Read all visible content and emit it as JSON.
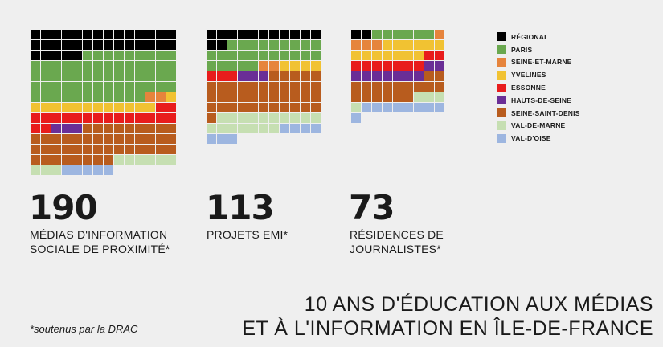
{
  "chart_data": {
    "type": "waffle",
    "regions": [
      {
        "key": "regional",
        "label": "RÉGIONAL",
        "color": "#000000"
      },
      {
        "key": "paris",
        "label": "PARIS",
        "color": "#6aa84f"
      },
      {
        "key": "seine_et_marne",
        "label": "SEINE-ET-MARNE",
        "color": "#e6843c"
      },
      {
        "key": "yvelines",
        "label": "YVELINES",
        "color": "#f1c232"
      },
      {
        "key": "essonne",
        "label": "ESSONNE",
        "color": "#e81c1c"
      },
      {
        "key": "hauts_de_seine",
        "label": "HAUTS-DE-SEINE",
        "color": "#6a2e96"
      },
      {
        "key": "seine_saint_denis",
        "label": "SEINE-SAINT-DENIS",
        "color": "#b85c1e"
      },
      {
        "key": "val_de_marne",
        "label": "VAL-DE-MARNE",
        "color": "#c6dfb2"
      },
      {
        "key": "val_d_oise",
        "label": "VAL-D'OISE",
        "color": "#9db6e0"
      }
    ],
    "grids": [
      {
        "total": "190",
        "label_lines": [
          "MÉDIAS D'INFORMATION",
          "SOCIALE DE PROXIMITÉ*"
        ],
        "columns": 14,
        "counts": {
          "regional": 33,
          "paris": 62,
          "seine_et_marne": 2,
          "yvelines": 13,
          "essonne": 18,
          "hauts_de_seine": 3,
          "seine_saint_denis": 45,
          "val_de_marne": 9,
          "val_d_oise": 5
        }
      },
      {
        "total": "113",
        "label_lines": [
          "PROJETS EMI*"
        ],
        "columns": 11,
        "counts": {
          "regional": 13,
          "paris": 25,
          "seine_et_marne": 2,
          "yvelines": 4,
          "essonne": 3,
          "hauts_de_seine": 3,
          "seine_saint_denis": 39,
          "val_de_marne": 17,
          "val_d_oise": 7
        }
      },
      {
        "total": "73",
        "label_lines": [
          "RÉSIDENCES DE",
          "JOURNALISTES*"
        ],
        "columns": 9,
        "counts": {
          "regional": 2,
          "paris": 6,
          "seine_et_marne": 4,
          "yvelines": 13,
          "essonne": 9,
          "hauts_de_seine": 9,
          "seine_saint_denis": 17,
          "val_de_marne": 4,
          "val_d_oise": 9
        }
      }
    ]
  },
  "title_lines": [
    "10 ANS D'ÉDUCATION AUX MÉDIAS",
    "ET À L'INFORMATION EN ÎLE-DE-FRANCE"
  ],
  "footnote": "*soutenus par la DRAC"
}
